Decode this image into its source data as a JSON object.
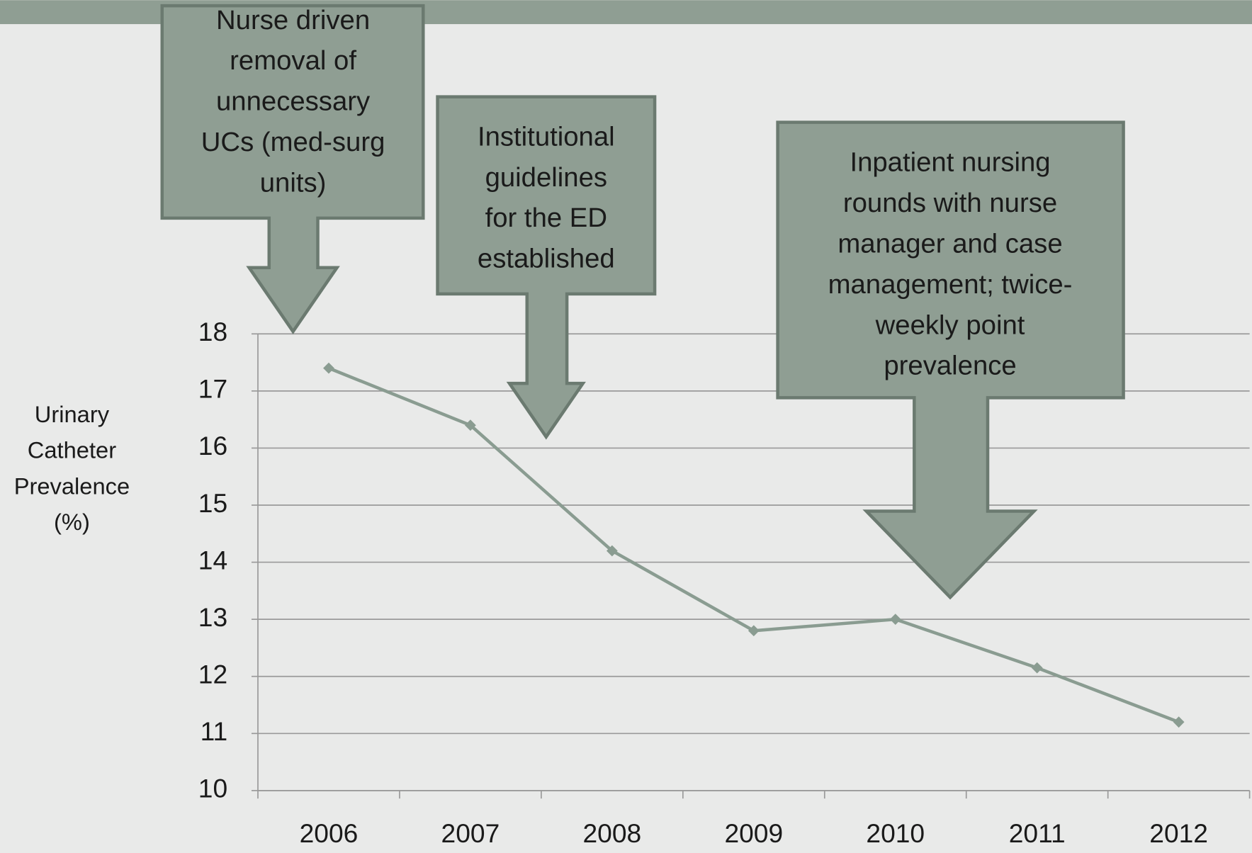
{
  "chart_data": {
    "type": "line",
    "y_label": [
      "Urinary",
      "Catheter",
      "Prevalence",
      "(%)"
    ],
    "categories": [
      "2006",
      "2007",
      "2008",
      "2009",
      "2010",
      "2011",
      "2012"
    ],
    "series": [
      {
        "name": "Urinary Catheter Prevalence",
        "color": "#8a9c91",
        "values": [
          17.4,
          16.4,
          14.2,
          12.8,
          13.0,
          12.15,
          11.2
        ]
      }
    ],
    "ylim": [
      10,
      18
    ],
    "yticks": [
      10,
      11,
      12,
      13,
      14,
      15,
      16,
      17,
      18
    ],
    "grid": true,
    "annotations": [
      {
        "lines": [
          "Nurse driven",
          "removal of",
          "unnecessary",
          "UCs (med-surg",
          "units)"
        ]
      },
      {
        "lines": [
          "Institutional",
          "guidelines",
          "for the ED",
          "established"
        ]
      },
      {
        "lines": [
          "Inpatient nursing",
          "rounds with nurse",
          "manager and case",
          "management; twice-",
          "weekly point",
          "prevalence"
        ]
      }
    ]
  }
}
